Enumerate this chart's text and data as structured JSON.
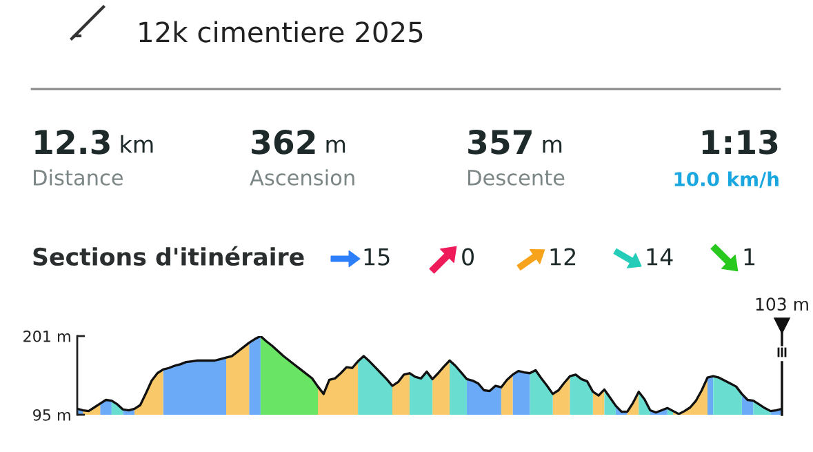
{
  "chart_data": {
    "type": "area",
    "title": "12k cimentiere 2025",
    "annotations": [
      "12.3 km",
      "Distance",
      "362 m",
      "Ascension",
      "357 m",
      "Descente",
      "1:13",
      "10.0 km/h",
      "Sections d'itinéraire",
      "15",
      "0",
      "12",
      "14",
      "1",
      "103 m"
    ],
    "categories": [
      null,
      null,
      null,
      null,
      null,
      null,
      null,
      null,
      null,
      null,
      null,
      null,
      null,
      null,
      null,
      null,
      null,
      null,
      null,
      null,
      null,
      null,
      null,
      null,
      null,
      null,
      null,
      null,
      null,
      null,
      null,
      null,
      null,
      null,
      null,
      null,
      null,
      null,
      null,
      null,
      null,
      null,
      null,
      null,
      null,
      null,
      null,
      null,
      null,
      null,
      null,
      null,
      null,
      null,
      null,
      null,
      null,
      null,
      null,
      null,
      null,
      null,
      null,
      null,
      null,
      null,
      null,
      null,
      null,
      null,
      null,
      null,
      null,
      null,
      null,
      null,
      null,
      null,
      null,
      null,
      null,
      null,
      null,
      null,
      null,
      null,
      null,
      null,
      null,
      null,
      null,
      null,
      null,
      null,
      null,
      null,
      null,
      null,
      null,
      null,
      null,
      null,
      null,
      null,
      null,
      null,
      null,
      null,
      null,
      null,
      null,
      null,
      null,
      null,
      null,
      null,
      null,
      null,
      null,
      null,
      null,
      null,
      null,
      null
    ],
    "ylim": [
      95,
      201
    ],
    "yticks": [
      {
        "value": 201,
        "label": "201 m"
      },
      {
        "value": 95,
        "label": "95 m"
      }
    ],
    "tick_labels": "y",
    "grid": false,
    "series": [
      {
        "type": "line",
        "color": "#111111",
        "values": [
          103,
          101,
          100,
          105,
          110,
          115,
          114,
          109,
          102,
          101,
          103,
          108,
          124,
          141,
          151,
          156,
          158,
          161,
          163,
          166,
          167,
          168,
          168,
          168,
          168,
          170,
          172,
          174,
          180,
          186,
          192,
          197,
          201,
          194,
          188,
          181,
          174,
          168,
          162,
          156,
          150,
          144,
          133,
          123,
          142,
          144,
          151,
          159,
          158,
          167,
          174,
          167,
          159,
          151,
          143,
          134,
          139,
          149,
          151,
          146,
          144,
          153,
          143,
          151,
          160,
          168,
          161,
          152,
          143,
          141,
          137,
          128,
          127,
          134,
          132,
          142,
          149,
          154,
          152,
          151,
          155,
          144,
          134,
          123,
          128,
          138,
          147,
          149,
          143,
          140,
          126,
          121,
          129,
          118,
          107,
          99,
          99,
          111,
          126,
          116,
          101,
          98,
          101,
          104,
          100,
          96,
          100,
          105,
          114,
          128,
          145,
          147,
          145,
          141,
          137,
          133,
          123,
          115,
          114,
          109,
          104,
          100,
          101,
          103
        ]
      },
      {
        "color": "#6aaaf6",
        "values": [
          103,
          101,
          null,
          null,
          110,
          115,
          114,
          null,
          102,
          101,
          103,
          null,
          null,
          null,
          null,
          156,
          158,
          161,
          163,
          166,
          167,
          168,
          168,
          168,
          168,
          170,
          172,
          null,
          null,
          null,
          192,
          197,
          201,
          null,
          null,
          null,
          null,
          null,
          null,
          null,
          null,
          null,
          null,
          null,
          null,
          null,
          null,
          null,
          null,
          null,
          null,
          null,
          null,
          null,
          null,
          null,
          null,
          null,
          null,
          null,
          null,
          null,
          null,
          null,
          null,
          null,
          null,
          null,
          143,
          141,
          137,
          128,
          127,
          134,
          132,
          null,
          149,
          154,
          152,
          151,
          null,
          null,
          null,
          null,
          null,
          null,
          null,
          null,
          null,
          null,
          null,
          null,
          null,
          null,
          107,
          99,
          99,
          null,
          null,
          null,
          101,
          98,
          101,
          104,
          null,
          null,
          null,
          null,
          null,
          null,
          145,
          147,
          null,
          null,
          null,
          null,
          123,
          115,
          114,
          null,
          null,
          100,
          101,
          103
        ]
      },
      {
        "color": "#f9c868",
        "values": [
          null,
          101,
          100,
          105,
          110,
          null,
          null,
          null,
          null,
          null,
          103,
          108,
          124,
          141,
          151,
          156,
          null,
          null,
          null,
          null,
          null,
          null,
          null,
          null,
          null,
          null,
          172,
          174,
          180,
          186,
          192,
          null,
          null,
          null,
          null,
          null,
          null,
          null,
          null,
          null,
          null,
          null,
          133,
          123,
          142,
          144,
          151,
          159,
          158,
          167,
          null,
          null,
          null,
          null,
          null,
          134,
          139,
          149,
          151,
          null,
          null,
          null,
          143,
          151,
          160,
          168,
          null,
          null,
          null,
          null,
          null,
          null,
          null,
          null,
          132,
          142,
          149,
          null,
          null,
          null,
          null,
          null,
          null,
          123,
          128,
          138,
          147,
          null,
          null,
          null,
          126,
          121,
          129,
          null,
          null,
          null,
          99,
          111,
          126,
          null,
          null,
          null,
          null,
          null,
          100,
          96,
          100,
          105,
          114,
          128,
          145,
          null,
          null,
          null,
          null,
          null,
          null,
          null,
          null,
          null,
          null,
          null,
          null,
          null
        ]
      },
      {
        "color": "#68ddd0",
        "values": [
          null,
          null,
          null,
          null,
          null,
          null,
          114,
          109,
          102,
          null,
          null,
          null,
          null,
          null,
          null,
          null,
          null,
          null,
          null,
          null,
          null,
          null,
          null,
          null,
          null,
          null,
          null,
          null,
          null,
          null,
          null,
          null,
          null,
          null,
          null,
          null,
          null,
          null,
          null,
          null,
          null,
          null,
          null,
          null,
          null,
          null,
          null,
          null,
          null,
          167,
          174,
          167,
          159,
          151,
          143,
          134,
          null,
          null,
          151,
          146,
          144,
          153,
          143,
          null,
          null,
          168,
          161,
          152,
          143,
          null,
          null,
          null,
          null,
          null,
          null,
          null,
          null,
          null,
          null,
          151,
          155,
          144,
          134,
          123,
          null,
          null,
          147,
          149,
          143,
          140,
          126,
          null,
          129,
          118,
          107,
          null,
          null,
          null,
          126,
          116,
          101,
          null,
          null,
          104,
          100,
          null,
          null,
          null,
          null,
          null,
          null,
          147,
          145,
          141,
          137,
          133,
          123,
          null,
          114,
          109,
          104,
          100,
          null,
          null
        ]
      },
      {
        "color": "#6ae464",
        "values": [
          null,
          null,
          null,
          null,
          null,
          null,
          null,
          null,
          null,
          null,
          null,
          null,
          null,
          null,
          null,
          null,
          null,
          null,
          null,
          null,
          null,
          null,
          null,
          null,
          null,
          null,
          null,
          null,
          null,
          null,
          null,
          null,
          201,
          194,
          188,
          181,
          174,
          168,
          162,
          156,
          150,
          144,
          133,
          null,
          null,
          null,
          null,
          null,
          null,
          null,
          null,
          null,
          null,
          null,
          null,
          null,
          null,
          null,
          null,
          null,
          null,
          null,
          null,
          null,
          null,
          null,
          null,
          null,
          null,
          null,
          null,
          null,
          null,
          null,
          null,
          null,
          null,
          null,
          null,
          null,
          null,
          null,
          null,
          null,
          null,
          null,
          null,
          null,
          null,
          null,
          null,
          null,
          null,
          null,
          null,
          null,
          null,
          null,
          null,
          null,
          null,
          null,
          null,
          null,
          null,
          null,
          null,
          null,
          null,
          null,
          null,
          null,
          null,
          null,
          null,
          null,
          null,
          null,
          null,
          null,
          null,
          null,
          null,
          null
        ]
      }
    ]
  }
}
